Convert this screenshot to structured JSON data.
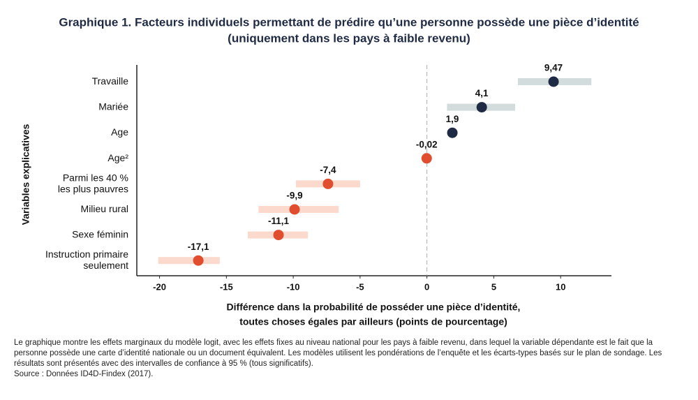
{
  "chart_data": {
    "type": "dot_ci",
    "title": [
      "Graphique 1. Facteurs individuels permettant de prédire qu’une personne possède une pièce d’identité",
      "(uniquement dans les pays à faible revenu)"
    ],
    "y_label": "Variables explicatives",
    "x_label": [
      "Différence dans la probabilité de posséder une pièce d’identité,",
      "toutes choses égales par ailleurs (points de pourcentage)"
    ],
    "categories": [
      [
        "Travaille"
      ],
      [
        "Mariée"
      ],
      [
        "Age"
      ],
      [
        "Age²"
      ],
      [
        "Parmi les 40 %",
        "les plus pauvres"
      ],
      [
        "Milieu rural"
      ],
      [
        "Sexe féminin"
      ],
      [
        "Instruction primaire",
        "seulement"
      ]
    ],
    "values": [
      9.47,
      4.1,
      1.9,
      -0.02,
      -7.4,
      -9.9,
      -11.1,
      -17.1
    ],
    "value_labels": [
      "9,47",
      "4,1",
      "1,9",
      "-0,02",
      "-7,4",
      "-9,9",
      "-11,1",
      "-17,1"
    ],
    "ci_low": [
      6.8,
      1.5,
      null,
      null,
      -9.8,
      -12.6,
      -13.4,
      -20.1
    ],
    "ci_high": [
      12.3,
      6.6,
      null,
      null,
      -5.0,
      -6.6,
      -8.9,
      -15.5
    ],
    "positive_color": "#1f2a44",
    "negative_color": "#e04e2f",
    "positive_ci_color": "#d3dcdc",
    "negative_ci_color": "#fbd9cc",
    "xlim": [
      -21.7,
      13.8
    ],
    "xticks": [
      -20,
      -15,
      -10,
      -5,
      0,
      5,
      10
    ],
    "note": "Le graphique montre les effets marginaux du modèle logit, avec les effets fixes au niveau national pour les pays à faible revenu, dans lequel la variable dépendante est le fait que la personne possède une carte d’identité nationale ou un document équivalent. Les modèles utilisent les pondérations de l’enquête et les écarts-types basés sur le plan de sondage. Les résultats sont présentés avec des intervalles de confiance à 95 % (tous significatifs).",
    "source": "Source : Données  ID4D-Findex (2017)."
  }
}
